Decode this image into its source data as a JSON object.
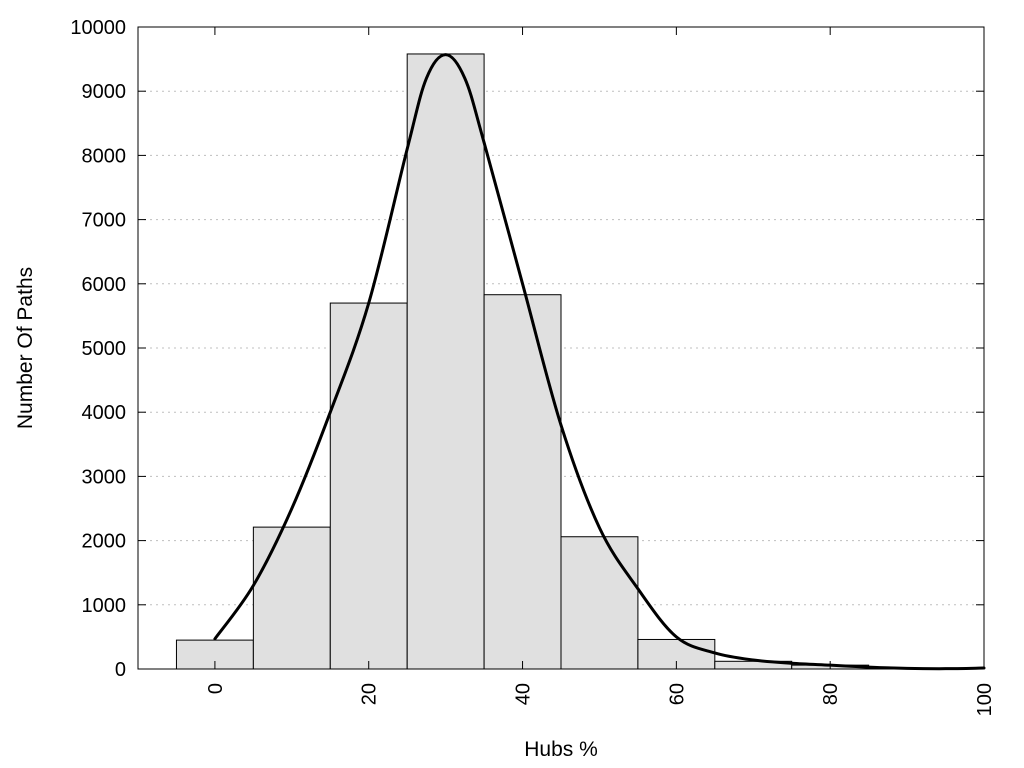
{
  "chart_data": {
    "type": "bar",
    "xlabel": "Hubs %",
    "ylabel": "Number Of Paths",
    "xlim": [
      -10,
      100
    ],
    "ylim": [
      0,
      10000
    ],
    "xticks": [
      0,
      20,
      40,
      60,
      80,
      100
    ],
    "yticks": [
      0,
      1000,
      2000,
      3000,
      4000,
      5000,
      6000,
      7000,
      8000,
      9000,
      10000
    ],
    "grid": "horizontal dotted",
    "bin_width": 10,
    "bins": [
      {
        "center": 0,
        "value": 450
      },
      {
        "center": 10,
        "value": 2210
      },
      {
        "center": 20,
        "value": 5700
      },
      {
        "center": 30,
        "value": 9580
      },
      {
        "center": 40,
        "value": 5830
      },
      {
        "center": 50,
        "value": 2060
      },
      {
        "center": 60,
        "value": 460
      },
      {
        "center": 70,
        "value": 120
      },
      {
        "center": 80,
        "value": 60
      }
    ],
    "curve": {
      "x": [
        0,
        5,
        10,
        15,
        20,
        25,
        27.5,
        30,
        32.5,
        35,
        40,
        45,
        50,
        55,
        60,
        65,
        70,
        75,
        80,
        85,
        90,
        95,
        100
      ],
      "y": [
        470,
        1300,
        2500,
        4000,
        5700,
        8100,
        9200,
        9570,
        9200,
        8200,
        6000,
        3800,
        2200,
        1250,
        500,
        250,
        140,
        90,
        60,
        30,
        10,
        5,
        15
      ]
    },
    "colors": {
      "bar_fill": "#e0e0e0",
      "bar_stroke": "#000000",
      "curve": "#000000",
      "grid": "#bfbfbf"
    }
  }
}
